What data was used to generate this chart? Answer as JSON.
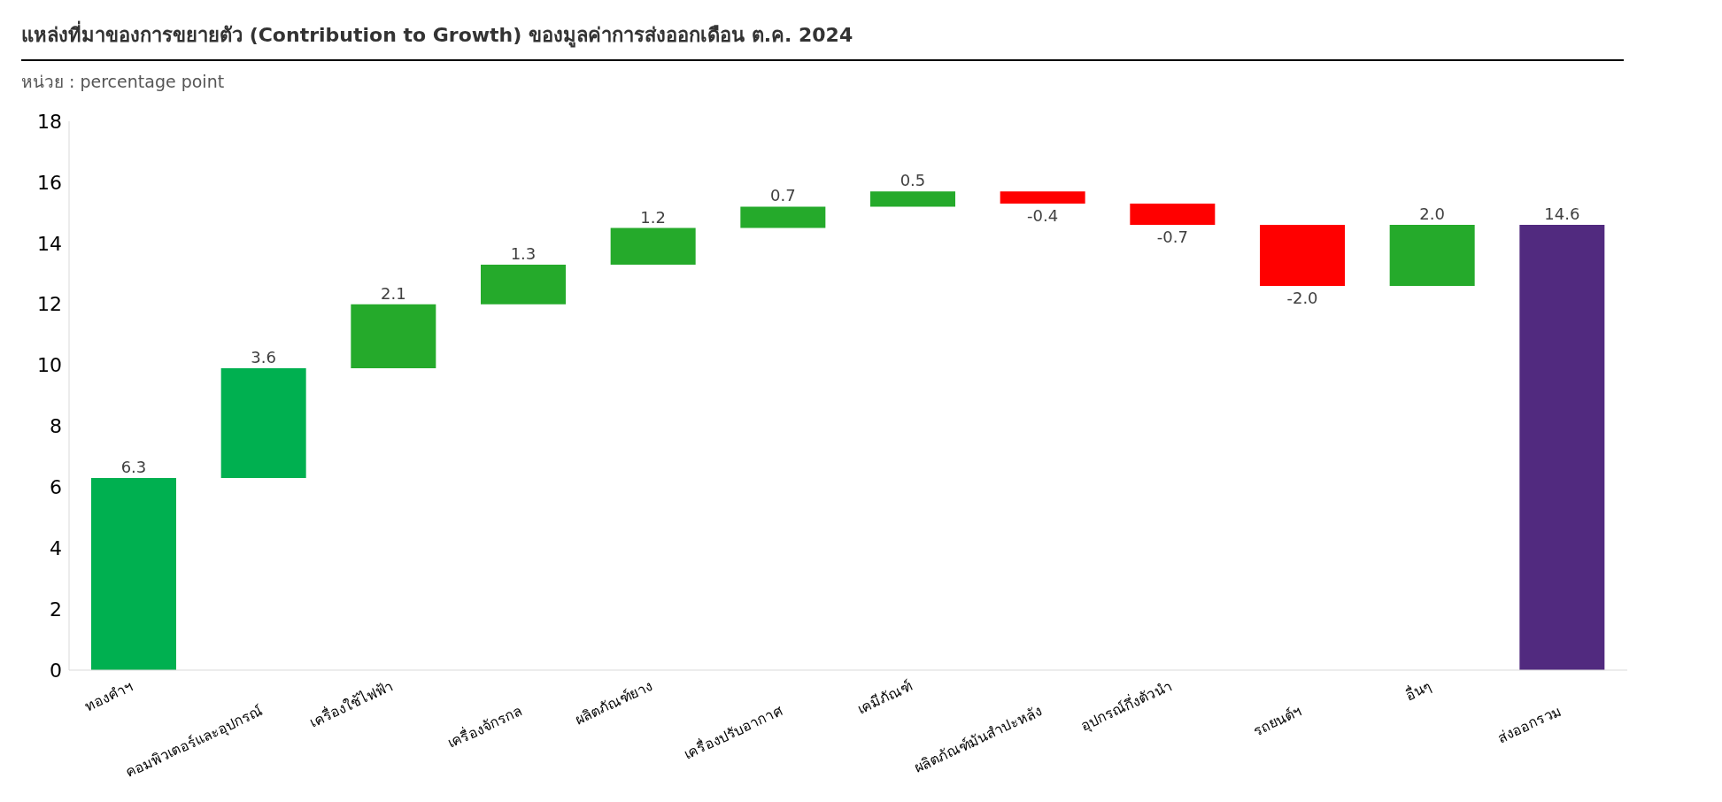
{
  "chart_data": {
    "type": "bar",
    "title": "แหล่งที่มาของการขยายตัว (Contribution to Growth) ของมูลค่าการส่งออกเดือน ต.ค. 2024",
    "subtitle": "หน่วย : percentage point",
    "categories": [
      "ทองคำฯ",
      "คอมพิวเตอร์และอุปกรณ์",
      "เครื่องใช้ไฟฟ้า",
      "เครื่องจักรกล",
      "ผลิตภัณฑ์ยาง",
      "เครื่องปรับอากาศ",
      "เคมีภัณฑ์",
      "ผลิตภัณฑ์มันสำปะหลัง",
      "อุปกรณ์กึ่งตัวนำ",
      "รถยนต์ฯ",
      "อื่นๆ",
      "ส่งออกรวม"
    ],
    "values": [
      6.3,
      3.6,
      2.1,
      1.3,
      1.2,
      0.7,
      0.5,
      -0.4,
      -0.7,
      -2.0,
      2.0,
      14.6
    ],
    "base": [
      0,
      6.3,
      9.9,
      12.0,
      13.3,
      14.5,
      15.2,
      15.7,
      15.3,
      14.6,
      12.6,
      0
    ],
    "colors": [
      "#00b050",
      "#00b050",
      "#25aa2b",
      "#25aa2b",
      "#25aa2b",
      "#25aa2b",
      "#25aa2b",
      "#ff0000",
      "#ff0000",
      "#ff0000",
      "#25aa2b",
      "#512a7f"
    ],
    "value_labels": [
      "6.3",
      "3.6",
      "2.1",
      "1.3",
      "1.2",
      "0.7",
      "0.5",
      "-0.4",
      "-0.7",
      "-2.0",
      "2.0",
      "14.6"
    ],
    "ylim": [
      0,
      18
    ],
    "yticks": [
      0,
      2,
      4,
      6,
      8,
      10,
      12,
      14,
      16,
      18
    ],
    "grid": false,
    "legend": false
  }
}
